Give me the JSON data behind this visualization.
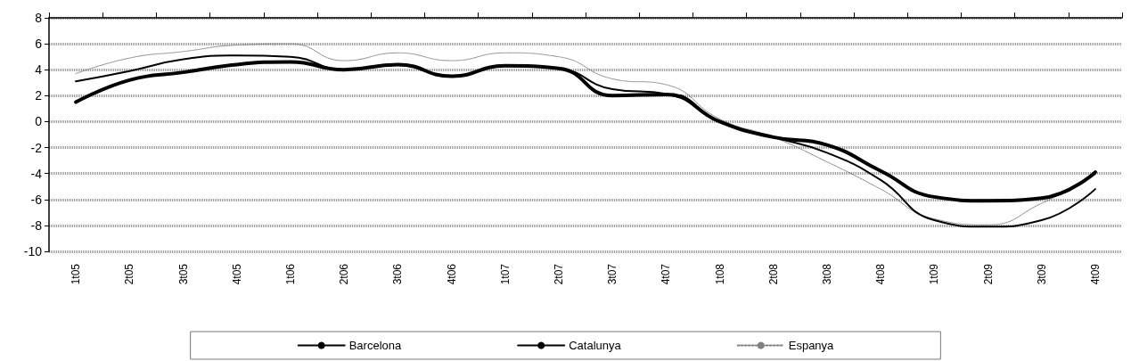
{
  "chart_data": {
    "type": "line",
    "categories": [
      "1t05",
      "2t05",
      "3t05",
      "4t05",
      "1t06",
      "2t06",
      "3t06",
      "4t06",
      "1t07",
      "2t07",
      "3t07",
      "4t07",
      "1t08",
      "2t08",
      "3t08",
      "4t08",
      "1t09",
      "2t09",
      "3t09",
      "4t09"
    ],
    "series": [
      {
        "name": "Barcelona",
        "color": "#000000",
        "line_style": "solid",
        "values": [
          3.1,
          3.9,
          4.8,
          5.1,
          5.0,
          4.0,
          4.4,
          3.5,
          4.3,
          4.1,
          2.5,
          2.15,
          0,
          -1.2,
          -2.4,
          -4.5,
          -7.6,
          -8.1,
          -7.6,
          -5.2
        ]
      },
      {
        "name": "Catalunya",
        "color": "#000000",
        "line_style": "solid",
        "values": [
          1.5,
          3.2,
          3.8,
          4.4,
          4.6,
          4.0,
          4.4,
          3.5,
          4.3,
          4.1,
          2.0,
          2.1,
          0,
          -1.2,
          -1.8,
          -3.8,
          -5.8,
          -6.1,
          -5.9,
          -3.9
        ]
      },
      {
        "name": "Espanya",
        "color": "#808080",
        "line_style": "dotted",
        "values": [
          3.7,
          4.9,
          5.4,
          5.9,
          6.0,
          4.7,
          5.3,
          4.7,
          5.3,
          5.0,
          3.3,
          2.85,
          0.2,
          -1.2,
          -3.1,
          -5.2,
          -7.5,
          -7.95,
          -6.3,
          -4.1
        ]
      }
    ],
    "ylim": [
      -10,
      8
    ],
    "yticks": [
      -10,
      -8,
      -6,
      -4,
      -2,
      0,
      2,
      4,
      6,
      8
    ],
    "grid": "y",
    "legend": "bottom",
    "marker": "none"
  }
}
